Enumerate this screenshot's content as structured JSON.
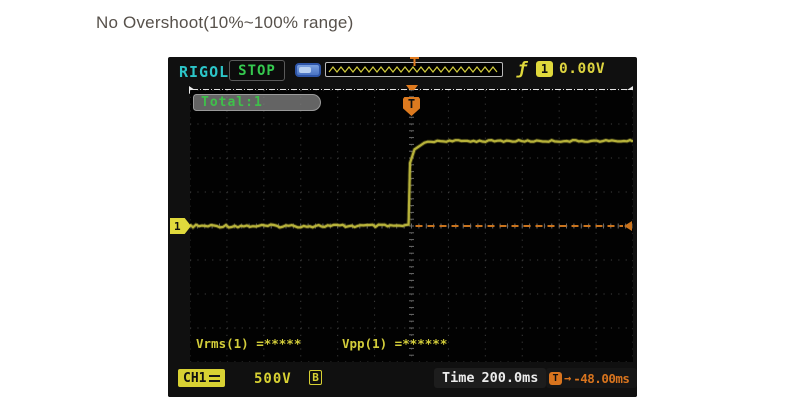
{
  "page": {
    "title": "No Overshoot(10%~100% range)"
  },
  "scope": {
    "brand": "RIGOL",
    "run_state": "STOP",
    "counter": "Total:1",
    "icons": {
      "slope": "ƒ",
      "offset_arrow": "→"
    },
    "trigger": {
      "source": "1",
      "level": "0.00V",
      "marker": "T",
      "offset": "-48.00ms"
    },
    "measurements": {
      "vrms": "Vrms(1) =*****",
      "vpp": "Vpp(1) =******"
    },
    "channel": {
      "badge": "CH1",
      "scale": "500V",
      "bandwidth": "B",
      "marker": "1"
    },
    "timebase": {
      "label": "Time",
      "value": "200.0ms"
    }
  },
  "chart_data": {
    "type": "line",
    "title": "No Overshoot(10%~100% range)",
    "x_divisions": 12,
    "y_divisions": 8,
    "timebase": "200.0ms/div",
    "vertical_scale": "500V/div",
    "trigger_level": "0.00V",
    "trigger_offset": "-48.00ms",
    "grid": "dotted",
    "description": "Step waveform with no overshoot: flat baseline at center graticule rises at the trigger point and settles 2.5 divisions higher with no overshoot.",
    "series": [
      {
        "name": "CH1",
        "color": "#b7b23a",
        "points_div": [
          [
            -6,
            0
          ],
          [
            -0.08,
            0
          ],
          [
            -0.04,
            1.85
          ],
          [
            0.08,
            2.25
          ],
          [
            0.35,
            2.45
          ],
          [
            0.7,
            2.5
          ],
          [
            6,
            2.5
          ]
        ]
      }
    ],
    "annotations": {
      "baseline_div": 0,
      "settled_level_div": 2.5,
      "trigger_level_line_div": 0,
      "trigger_position_div": 0
    }
  }
}
